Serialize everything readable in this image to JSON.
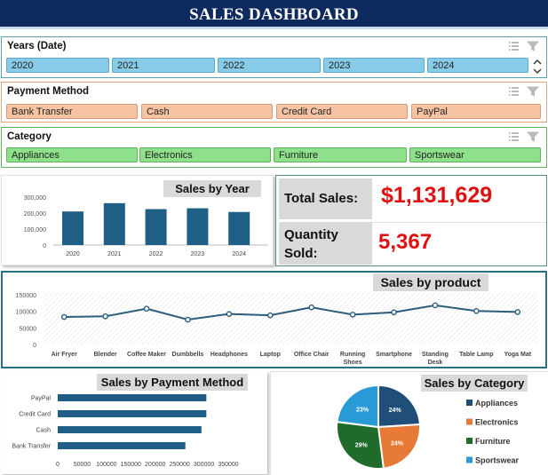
{
  "header": {
    "title": "SALES DASHBOARD"
  },
  "colors": {
    "header_bg": "#0f2a5f",
    "year_chip": "#87cbe9",
    "payment_chip": "#f6c4a3",
    "category_chip": "#8fe08a",
    "bar": "#1f5f85",
    "kpi_value": "#e01010",
    "line": "#2c5d7c"
  },
  "slicers": {
    "years": {
      "title": "Years (Date)",
      "items": [
        "2020",
        "2021",
        "2022",
        "2023",
        "2024"
      ],
      "icons": [
        "multi-select-icon",
        "clear-filter-icon",
        "scroll-up-icon",
        "scroll-down-icon"
      ]
    },
    "payment": {
      "title": "Payment Method",
      "items": [
        "Bank Transfer",
        "Cash",
        "Credit Card",
        "PayPal"
      ],
      "icons": [
        "multi-select-icon",
        "clear-filter-icon"
      ]
    },
    "category": {
      "title": "Category",
      "items": [
        "Appliances",
        "Electronics",
        "Furniture",
        "Sportswear"
      ],
      "icons": [
        "multi-select-icon",
        "clear-filter-icon"
      ]
    }
  },
  "kpis": {
    "total_sales": {
      "label": "Total Sales:",
      "value": "$1,131,629"
    },
    "quantity_sold": {
      "label_line1": "Quantity",
      "label_line2": "Sold:",
      "value": "5,367"
    }
  },
  "chart_data": [
    {
      "type": "bar",
      "title": "Sales by Year",
      "categories": [
        "2020",
        "2021",
        "2022",
        "2023",
        "2024"
      ],
      "values": [
        210000,
        262000,
        225000,
        230000,
        207000
      ],
      "yticks": [
        "300,000",
        "200,000",
        "100,000",
        "0"
      ],
      "ylim": [
        0,
        300000
      ]
    },
    {
      "type": "line",
      "title": "Sales by product",
      "categories": [
        "Air Fryer",
        "Blender",
        "Coffee Maker",
        "Dumbbells",
        "Headphones",
        "Laptop",
        "Office Chair",
        "Running Shoes",
        "Smartphone",
        "Standing Desk",
        "Table Lamp",
        "Yoga Mat"
      ],
      "values": [
        83000,
        85000,
        108000,
        75000,
        92000,
        88000,
        112000,
        90000,
        97000,
        118000,
        101000,
        98000
      ],
      "yticks": [
        "150000",
        "100000",
        "50000",
        "0"
      ],
      "ylim": [
        0,
        150000
      ]
    },
    {
      "type": "bar",
      "orientation": "horizontal",
      "title": "Sales by Payment Method",
      "categories": [
        "PayPal",
        "Credit Card",
        "Cash",
        "Bank Transfer"
      ],
      "values": [
        305000,
        305000,
        295000,
        262000
      ],
      "xticks": [
        "0",
        "50000",
        "100000",
        "150000",
        "200000",
        "250000",
        "300000",
        "350000"
      ],
      "xlim": [
        0,
        350000
      ]
    },
    {
      "type": "pie",
      "title": "Sales by Category",
      "labels": [
        "Appliances",
        "Electronics",
        "Furniture",
        "Sportswear"
      ],
      "values": [
        24,
        24,
        29,
        23
      ],
      "value_labels": [
        "24%",
        "24%",
        "29%",
        "23%"
      ],
      "colors": [
        "#1f4e79",
        "#e67a36",
        "#1f6b2a",
        "#2a9ad6"
      ],
      "legend": "right"
    }
  ]
}
